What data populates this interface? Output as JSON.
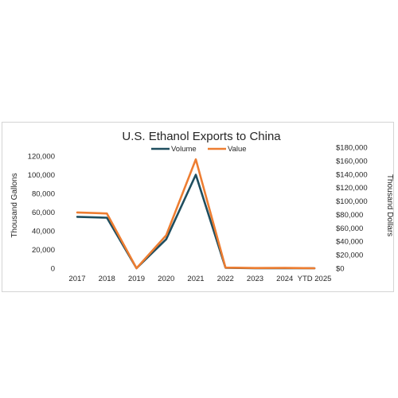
{
  "chart_data": {
    "type": "line",
    "title": "U.S. Ethanol Exports to China",
    "categories": [
      "2017",
      "2018",
      "2019",
      "2020",
      "2021",
      "2022",
      "2023",
      "2024",
      "YTD 2025"
    ],
    "series": [
      {
        "name": "Volume",
        "axis": "left",
        "color": "#1f4e5f",
        "values": [
          55000,
          54000,
          0,
          31000,
          100000,
          500,
          0,
          100,
          0
        ]
      },
      {
        "name": "Value",
        "axis": "right",
        "color": "#ed7d31",
        "values": [
          83000,
          81500,
          0,
          49000,
          162000,
          1000,
          300,
          500,
          0
        ]
      }
    ],
    "ylabel_left": "Thousand Gallons",
    "ylabel_right": "Thousand Dollars",
    "ylim_left": [
      0,
      120000
    ],
    "ylim_right": [
      0,
      180000
    ],
    "yticks_left": [
      "0",
      "20,000",
      "40,000",
      "60,000",
      "80,000",
      "100,000",
      "120,000"
    ],
    "yticks_right": [
      "$0",
      "$20,000",
      "$40,000",
      "$60,000",
      "$80,000",
      "$100,000",
      "$120,000",
      "$140,000",
      "$160,000",
      "$180,000"
    ],
    "legend": "top",
    "grid": false
  }
}
